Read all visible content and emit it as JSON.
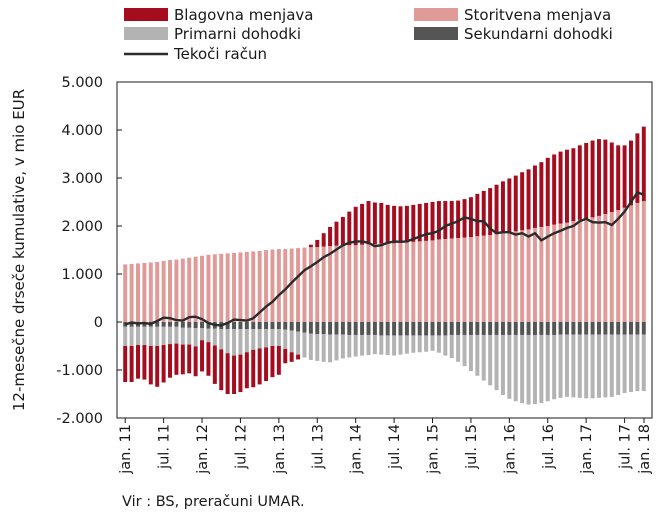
{
  "chart_data": {
    "type": "bar",
    "stacked": true,
    "ylabel": "12-mesečne drseče kumulative, v mio EUR",
    "ylim": [
      -2000,
      5000
    ],
    "yticks": [
      5000,
      4000,
      3000,
      2000,
      1000,
      0,
      -1000,
      -2000
    ],
    "ytick_labels": [
      "5.000",
      "4.000",
      "3.000",
      "2.000",
      "1.000",
      "0",
      "-1.000",
      "-2.000"
    ],
    "xtick_labels": [
      "jan. 11",
      "jul. 11",
      "jan. 12",
      "jul. 12",
      "jan. 13",
      "jul. 13",
      "jan. 14",
      "jul. 14",
      "jan. 15",
      "jul. 15",
      "jan. 16",
      "jul. 16",
      "jan. 17",
      "jul. 17",
      "jan. 18"
    ],
    "legend_position": "top",
    "grid": false,
    "periods_start": "jan. 11",
    "period_count": 82,
    "colors": {
      "goods": "#a50d1e",
      "services": "#e09a98",
      "primary": "#b3b3b3",
      "secondary": "#555555",
      "current": "#2b2b2b"
    },
    "legend": [
      {
        "key": "goods",
        "label": "Blagovna menjava",
        "kind": "bar"
      },
      {
        "key": "services",
        "label": "Storitvena menjava",
        "kind": "bar"
      },
      {
        "key": "primary",
        "label": "Primarni dohodki",
        "kind": "bar"
      },
      {
        "key": "secondary",
        "label": "Sekundarni dohodki",
        "kind": "bar"
      },
      {
        "key": "current",
        "label": "Tekoči račun",
        "kind": "line"
      }
    ],
    "series": {
      "services": [
        1200,
        1210,
        1220,
        1230,
        1240,
        1250,
        1270,
        1290,
        1300,
        1320,
        1340,
        1360,
        1380,
        1400,
        1410,
        1420,
        1430,
        1440,
        1450,
        1460,
        1470,
        1480,
        1500,
        1510,
        1520,
        1520,
        1530,
        1540,
        1550,
        1560,
        1560,
        1570,
        1580,
        1590,
        1590,
        1600,
        1600,
        1610,
        1620,
        1620,
        1630,
        1640,
        1640,
        1650,
        1660,
        1670,
        1680,
        1690,
        1700,
        1720,
        1730,
        1740,
        1750,
        1760,
        1770,
        1790,
        1800,
        1810,
        1830,
        1850,
        1870,
        1890,
        1910,
        1930,
        1960,
        1980,
        2000,
        2030,
        2050,
        2070,
        2100,
        2130,
        2150,
        2180,
        2210,
        2250,
        2290,
        2330,
        2380,
        2430,
        2480,
        2520
      ],
      "goods": [
        -750,
        -750,
        -700,
        -720,
        -800,
        -850,
        -780,
        -700,
        -650,
        -620,
        -600,
        -620,
        -650,
        -700,
        -800,
        -850,
        -850,
        -800,
        -780,
        -750,
        -780,
        -750,
        -700,
        -650,
        -600,
        -300,
        -200,
        -100,
        0,
        50,
        150,
        280,
        400,
        500,
        600,
        700,
        800,
        850,
        900,
        870,
        850,
        800,
        780,
        760,
        760,
        770,
        780,
        790,
        800,
        800,
        790,
        780,
        780,
        800,
        830,
        880,
        930,
        980,
        1030,
        1080,
        1120,
        1160,
        1210,
        1250,
        1300,
        1350,
        1420,
        1460,
        1500,
        1520,
        1520,
        1550,
        1580,
        1600,
        1600,
        1550,
        1450,
        1350,
        1300,
        1350,
        1450,
        1550
      ],
      "primary": [
        -400,
        -400,
        -380,
        -380,
        -400,
        -400,
        -380,
        -360,
        -350,
        -350,
        -350,
        -380,
        -250,
        -280,
        -350,
        -420,
        -500,
        -550,
        -530,
        -480,
        -430,
        -400,
        -380,
        -350,
        -350,
        -400,
        -450,
        -480,
        -520,
        -550,
        -560,
        -580,
        -580,
        -540,
        -500,
        -470,
        -450,
        -430,
        -420,
        -400,
        -400,
        -410,
        -420,
        -400,
        -380,
        -360,
        -350,
        -340,
        -320,
        -360,
        -420,
        -480,
        -560,
        -650,
        -750,
        -850,
        -950,
        -1050,
        -1150,
        -1250,
        -1330,
        -1380,
        -1420,
        -1450,
        -1440,
        -1420,
        -1380,
        -1340,
        -1320,
        -1300,
        -1310,
        -1320,
        -1330,
        -1330,
        -1320,
        -1310,
        -1300,
        -1260,
        -1220,
        -1200,
        -1180,
        -1180
      ],
      "secondary": [
        -100,
        -100,
        -100,
        -100,
        -100,
        -100,
        -100,
        -100,
        -100,
        -120,
        -120,
        -130,
        -130,
        -140,
        -140,
        -150,
        -150,
        -150,
        -150,
        -150,
        -150,
        -150,
        -150,
        -150,
        -150,
        -160,
        -180,
        -200,
        -220,
        -240,
        -250,
        -250,
        -260,
        -260,
        -260,
        -270,
        -270,
        -270,
        -270,
        -270,
        -280,
        -280,
        -280,
        -280,
        -280,
        -280,
        -280,
        -280,
        -280,
        -280,
        -280,
        -270,
        -270,
        -270,
        -270,
        -270,
        -270,
        -270,
        -270,
        -270,
        -270,
        -270,
        -270,
        -270,
        -270,
        -270,
        -270,
        -270,
        -260,
        -260,
        -260,
        -260,
        -260,
        -260,
        -260,
        -260,
        -260,
        -260,
        -260,
        -260,
        -260,
        -260
      ],
      "current": [
        -50,
        -10,
        -30,
        -20,
        -40,
        20,
        90,
        80,
        40,
        30,
        100,
        110,
        60,
        -20,
        -60,
        -70,
        -20,
        50,
        40,
        30,
        80,
        200,
        320,
        420,
        560,
        680,
        820,
        950,
        1080,
        1160,
        1250,
        1350,
        1420,
        1510,
        1600,
        1650,
        1680,
        1680,
        1650,
        1580,
        1600,
        1650,
        1680,
        1670,
        1680,
        1730,
        1780,
        1830,
        1850,
        1900,
        2000,
        2050,
        2100,
        2180,
        2150,
        2100,
        2100,
        1950,
        1850,
        1870,
        1870,
        1820,
        1850,
        1780,
        1850,
        1700,
        1780,
        1850,
        1900,
        1960,
        2000,
        2100,
        2150,
        2080,
        2070,
        2080,
        2020,
        2150,
        2300,
        2500,
        2700,
        2650
      ]
    }
  },
  "source_text": "Vir : BS, preračuni  UMAR."
}
